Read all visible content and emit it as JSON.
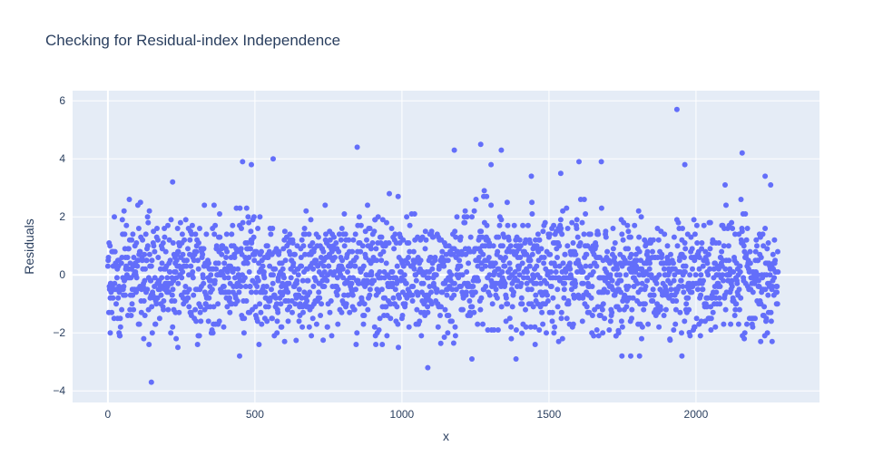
{
  "chart_data": {
    "type": "scatter",
    "title": "Checking for Residual-index Independence",
    "xlabel": "x",
    "ylabel": "Residuals",
    "xlim": [
      -120,
      2420
    ],
    "ylim": [
      -4.4,
      6.35
    ],
    "xticks": [
      0,
      500,
      1000,
      1500,
      2000
    ],
    "yticks": [
      -4,
      -2,
      0,
      2,
      4,
      6
    ],
    "n_points": 2280,
    "marker_color": "#636efa",
    "plot_bg": "#e5ecf6",
    "grid": true,
    "legend": "none",
    "notable_points": [
      {
        "x": 1935,
        "y": 5.7
      },
      {
        "x": 1268,
        "y": 4.5
      },
      {
        "x": 848,
        "y": 4.4
      },
      {
        "x": 1178,
        "y": 4.3
      },
      {
        "x": 2157,
        "y": 4.2
      },
      {
        "x": 562,
        "y": 4.0
      },
      {
        "x": 1602,
        "y": 3.9
      },
      {
        "x": 1678,
        "y": 3.9
      },
      {
        "x": 458,
        "y": 3.9
      },
      {
        "x": 488,
        "y": 3.8
      },
      {
        "x": 1962,
        "y": 3.8
      },
      {
        "x": 1338,
        "y": 4.3
      },
      {
        "x": 148,
        "y": -3.7
      },
      {
        "x": 1088,
        "y": -3.2
      },
      {
        "x": 1238,
        "y": -2.9
      },
      {
        "x": 1388,
        "y": -2.9
      },
      {
        "x": 448,
        "y": -2.8
      },
      {
        "x": 1778,
        "y": -2.8
      },
      {
        "x": 1808,
        "y": -2.8
      },
      {
        "x": 1952,
        "y": -2.8
      },
      {
        "x": 238,
        "y": -2.5
      },
      {
        "x": 988,
        "y": -2.5
      },
      {
        "x": 8,
        "y": -2.0
      },
      {
        "x": 38,
        "y": -2.0
      },
      {
        "x": 1748,
        "y": -2.8
      },
      {
        "x": 1540,
        "y": 3.5
      },
      {
        "x": 1440,
        "y": 3.4
      },
      {
        "x": 2235,
        "y": 3.4
      },
      {
        "x": 220,
        "y": 3.2
      },
      {
        "x": 1303,
        "y": 3.8
      }
    ]
  }
}
